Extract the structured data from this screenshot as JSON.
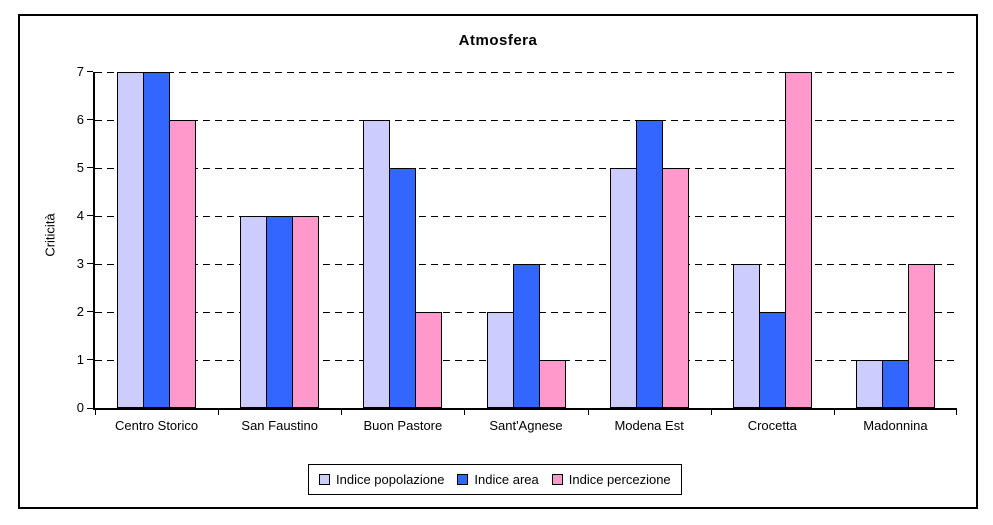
{
  "chart_data": {
    "type": "bar",
    "title": "Atmosfera",
    "xlabel": "",
    "ylabel": "Criticità",
    "categories": [
      "Centro Storico",
      "San Faustino",
      "Buon Pastore",
      "Sant'Agnese",
      "Modena Est",
      "Crocetta",
      "Madonnina"
    ],
    "series": [
      {
        "name": "Indice popolazione",
        "color": "#CCCCFF",
        "values": [
          7,
          4,
          6,
          2,
          5,
          3,
          1
        ]
      },
      {
        "name": "Indice area",
        "color": "#3366FF",
        "values": [
          7,
          4,
          5,
          3,
          6,
          2,
          1
        ]
      },
      {
        "name": "Indice percezione",
        "color": "#FF99CC",
        "values": [
          6,
          4,
          2,
          1,
          5,
          7,
          3
        ]
      }
    ],
    "ylim": [
      0,
      7
    ],
    "yticks": [
      0,
      1,
      2,
      3,
      4,
      5,
      6,
      7
    ],
    "grid": "horizontal-dashed",
    "legend_position": "bottom",
    "plot_background": "#FFFFFF",
    "axis_color": "#000000"
  }
}
